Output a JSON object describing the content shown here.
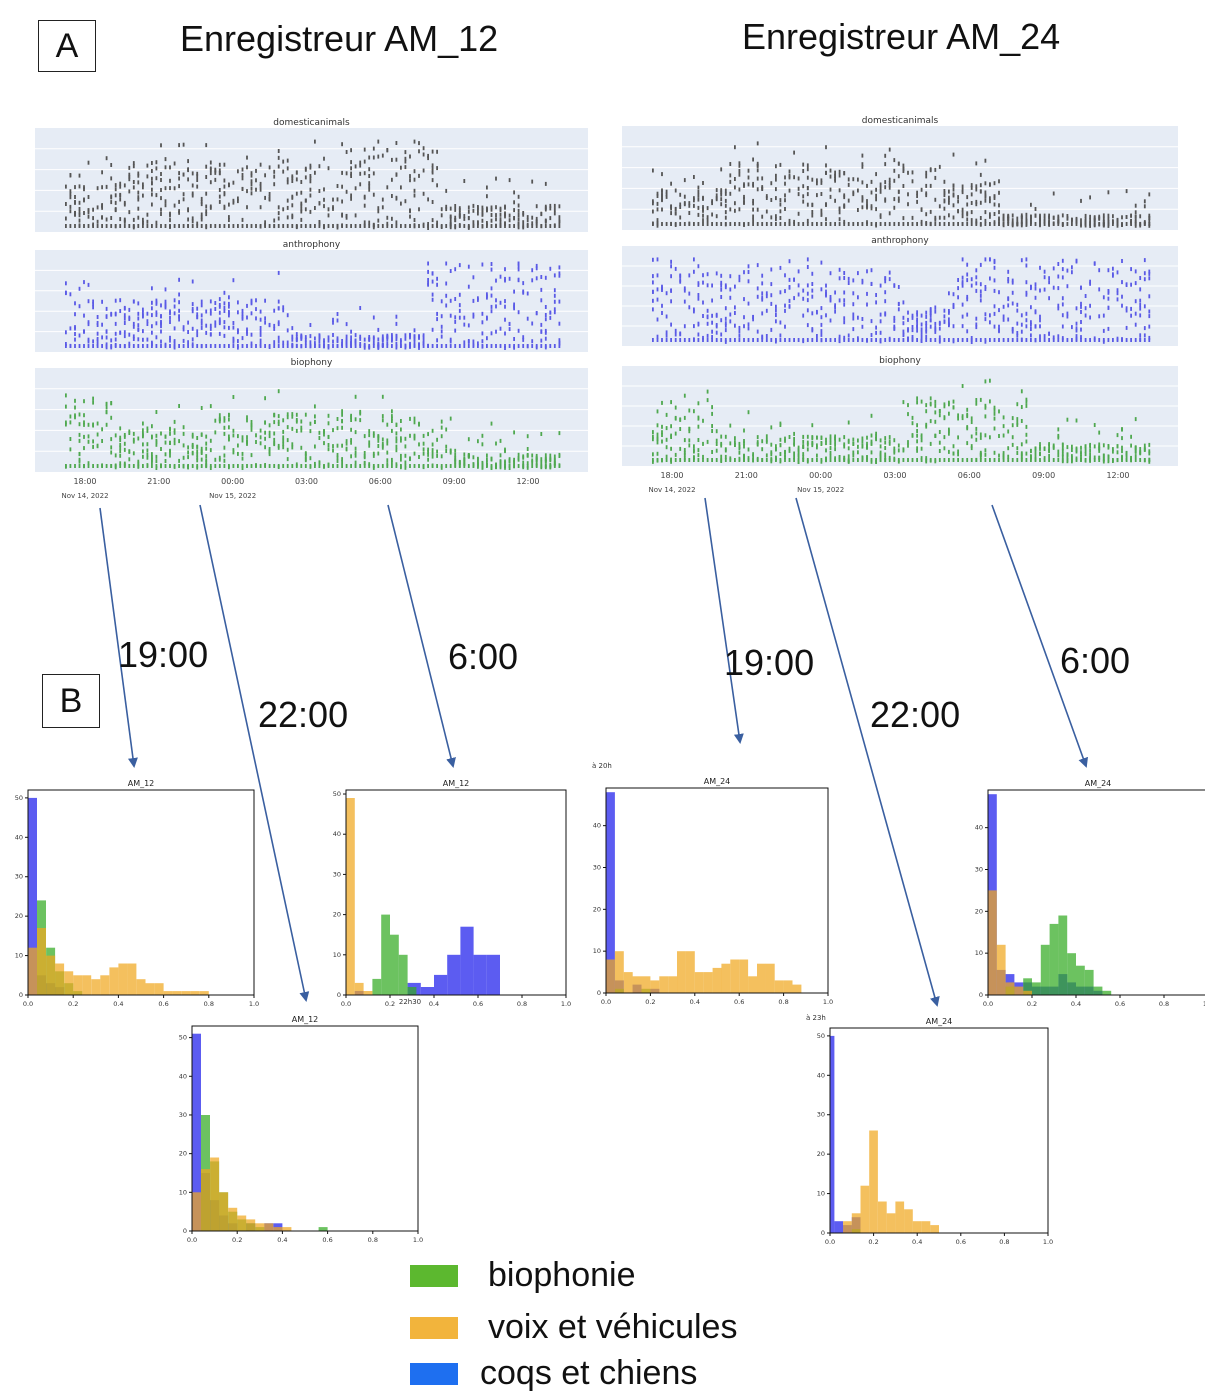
{
  "panel_labels": {
    "a": "A",
    "b": "B"
  },
  "recorders": [
    {
      "key": "am12",
      "title": "Enregistreur AM_12"
    },
    {
      "key": "am24",
      "title": "Enregistreur AM_24"
    }
  ],
  "colors": {
    "domestic": "#555555",
    "anthropo": "#5a5ae6",
    "bio": "#4fa84f",
    "hist_blue": "#3333ee",
    "hist_green": "#33aa22",
    "hist_orange": "#f0a820",
    "legend_green": "#5cb82f",
    "legend_orange": "#f2b43c",
    "legend_blue": "#1e6ff0",
    "arrow": "#3a5fa0",
    "strip_bg": "#e6ecf5"
  },
  "timeseries": {
    "strips": [
      {
        "key": "dom",
        "title": "domesticanimals",
        "color_key": "domestic"
      },
      {
        "key": "anth",
        "title": "anthrophony",
        "color_key": "anthropo"
      },
      {
        "key": "bio",
        "title": "biophony",
        "color_key": "bio"
      }
    ],
    "xticks": [
      "18:00",
      "21:00",
      "00:00",
      "03:00",
      "06:00",
      "09:00",
      "12:00"
    ],
    "date_labels": [
      "Nov 14, 2022",
      "Nov 15, 2022"
    ]
  },
  "time_labels": {
    "am12": [
      "19:00",
      "22:00",
      "6:00"
    ],
    "am24": [
      "19:00",
      "22:00",
      "6:00"
    ]
  },
  "chart_data": [
    {
      "type": "bar",
      "title": "AM_12",
      "time": "19:00",
      "x_ticks": [
        "0.0",
        "0.2",
        "0.4",
        "0.6",
        "0.8",
        "1.0"
      ],
      "y_ticks": [
        "0",
        "10",
        "20",
        "30",
        "40",
        "50"
      ],
      "xlim": [
        0,
        1
      ],
      "ylim": [
        0,
        52
      ],
      "series": [
        {
          "color_key": "hist_blue",
          "bins": [
            [
              0.0,
              0.04,
              50
            ],
            [
              0.04,
              0.08,
              5
            ],
            [
              0.08,
              0.12,
              3
            ],
            [
              0.12,
              0.16,
              2
            ]
          ]
        },
        {
          "color_key": "hist_green",
          "bins": [
            [
              0.04,
              0.08,
              24
            ],
            [
              0.08,
              0.12,
              12
            ],
            [
              0.12,
              0.16,
              6
            ],
            [
              0.16,
              0.2,
              3
            ],
            [
              0.2,
              0.24,
              1
            ]
          ]
        },
        {
          "color_key": "hist_orange",
          "bins": [
            [
              0.0,
              0.04,
              12
            ],
            [
              0.04,
              0.08,
              17
            ],
            [
              0.08,
              0.12,
              10
            ],
            [
              0.12,
              0.16,
              8
            ],
            [
              0.16,
              0.2,
              6
            ],
            [
              0.2,
              0.24,
              5
            ],
            [
              0.24,
              0.28,
              5
            ],
            [
              0.28,
              0.32,
              4
            ],
            [
              0.32,
              0.36,
              5
            ],
            [
              0.36,
              0.4,
              7
            ],
            [
              0.4,
              0.44,
              8
            ],
            [
              0.44,
              0.48,
              8
            ],
            [
              0.48,
              0.52,
              4
            ],
            [
              0.52,
              0.56,
              3
            ],
            [
              0.56,
              0.6,
              3
            ],
            [
              0.6,
              0.64,
              1
            ],
            [
              0.64,
              0.68,
              1
            ],
            [
              0.68,
              0.72,
              1
            ],
            [
              0.72,
              0.76,
              1
            ],
            [
              0.76,
              0.8,
              1
            ]
          ]
        }
      ]
    },
    {
      "type": "bar",
      "title": "AM_12",
      "time": "22:00",
      "x_ticks": [
        "0.0",
        "0.2",
        "0.4",
        "0.6",
        "0.8",
        "1.0"
      ],
      "y_ticks": [
        "0",
        "10",
        "20",
        "30",
        "40",
        "50"
      ],
      "xlim": [
        0,
        1
      ],
      "ylim": [
        0,
        53
      ],
      "series": [
        {
          "color_key": "hist_blue",
          "bins": [
            [
              0.0,
              0.04,
              51
            ],
            [
              0.04,
              0.08,
              15
            ],
            [
              0.08,
              0.12,
              8
            ],
            [
              0.12,
              0.16,
              4
            ],
            [
              0.16,
              0.2,
              2
            ],
            [
              0.24,
              0.28,
              2
            ],
            [
              0.32,
              0.36,
              2
            ],
            [
              0.36,
              0.4,
              2
            ]
          ]
        },
        {
          "color_key": "hist_green",
          "bins": [
            [
              0.04,
              0.08,
              30
            ],
            [
              0.08,
              0.12,
              18
            ],
            [
              0.12,
              0.16,
              10
            ],
            [
              0.16,
              0.2,
              5
            ],
            [
              0.2,
              0.24,
              3
            ],
            [
              0.24,
              0.28,
              2
            ],
            [
              0.28,
              0.32,
              1
            ],
            [
              0.56,
              0.6,
              1
            ]
          ]
        },
        {
          "color_key": "hist_orange",
          "bins": [
            [
              0.0,
              0.04,
              10
            ],
            [
              0.04,
              0.08,
              16
            ],
            [
              0.08,
              0.12,
              19
            ],
            [
              0.12,
              0.16,
              10
            ],
            [
              0.16,
              0.2,
              6
            ],
            [
              0.2,
              0.24,
              4
            ],
            [
              0.24,
              0.28,
              3
            ],
            [
              0.28,
              0.32,
              2
            ],
            [
              0.32,
              0.36,
              2
            ],
            [
              0.36,
              0.4,
              1
            ],
            [
              0.4,
              0.44,
              1
            ]
          ]
        }
      ]
    },
    {
      "type": "bar",
      "title": "AM_12",
      "time": "6:00",
      "x_ticks": [
        "0.0",
        "0.2",
        "0.4",
        "0.6",
        "0.8",
        "1.0"
      ],
      "y_ticks": [
        "0",
        "10",
        "20",
        "30",
        "40",
        "50"
      ],
      "xlim": [
        0,
        1
      ],
      "ylim": [
        0,
        51
      ],
      "annotation": "22h30",
      "series": [
        {
          "color_key": "hist_blue",
          "bins": [
            [
              0.04,
              0.08,
              1
            ],
            [
              0.28,
              0.34,
              3
            ],
            [
              0.34,
              0.4,
              2
            ],
            [
              0.4,
              0.46,
              5
            ],
            [
              0.46,
              0.52,
              10
            ],
            [
              0.52,
              0.58,
              17
            ],
            [
              0.58,
              0.64,
              10
            ],
            [
              0.64,
              0.7,
              10
            ]
          ]
        },
        {
          "color_key": "hist_green",
          "bins": [
            [
              0.12,
              0.16,
              4
            ],
            [
              0.16,
              0.2,
              20
            ],
            [
              0.2,
              0.24,
              15
            ],
            [
              0.24,
              0.28,
              10
            ],
            [
              0.28,
              0.32,
              2
            ]
          ]
        },
        {
          "color_key": "hist_orange",
          "bins": [
            [
              0.0,
              0.04,
              49
            ],
            [
              0.04,
              0.08,
              3
            ],
            [
              0.08,
              0.12,
              1
            ]
          ]
        }
      ]
    },
    {
      "type": "bar",
      "title": "AM_24",
      "time": "19:00",
      "x_ticks": [
        "0.0",
        "0.2",
        "0.4",
        "0.6",
        "0.8",
        "1.0"
      ],
      "y_ticks": [
        "0",
        "10",
        "20",
        "30",
        "40"
      ],
      "xlim": [
        0,
        1
      ],
      "ylim": [
        0,
        49
      ],
      "annotation": "à 20h",
      "series": [
        {
          "color_key": "hist_blue",
          "bins": [
            [
              0.0,
              0.04,
              48
            ],
            [
              0.04,
              0.08,
              3
            ],
            [
              0.12,
              0.16,
              2
            ],
            [
              0.2,
              0.24,
              1
            ]
          ]
        },
        {
          "color_key": "hist_green",
          "bins": [
            [
              0.04,
              0.08,
              1
            ],
            [
              0.16,
              0.2,
              1
            ]
          ]
        },
        {
          "color_key": "hist_orange",
          "bins": [
            [
              0.0,
              0.04,
              8
            ],
            [
              0.04,
              0.08,
              10
            ],
            [
              0.08,
              0.12,
              5
            ],
            [
              0.12,
              0.16,
              4
            ],
            [
              0.16,
              0.2,
              4
            ],
            [
              0.2,
              0.24,
              3
            ],
            [
              0.24,
              0.28,
              4
            ],
            [
              0.28,
              0.32,
              4
            ],
            [
              0.32,
              0.36,
              10
            ],
            [
              0.36,
              0.4,
              10
            ],
            [
              0.4,
              0.44,
              5
            ],
            [
              0.44,
              0.48,
              5
            ],
            [
              0.48,
              0.52,
              6
            ],
            [
              0.52,
              0.56,
              7
            ],
            [
              0.56,
              0.6,
              8
            ],
            [
              0.6,
              0.64,
              8
            ],
            [
              0.64,
              0.68,
              4
            ],
            [
              0.68,
              0.72,
              7
            ],
            [
              0.72,
              0.76,
              7
            ],
            [
              0.76,
              0.8,
              3
            ],
            [
              0.8,
              0.84,
              3
            ],
            [
              0.84,
              0.88,
              2
            ]
          ]
        }
      ]
    },
    {
      "type": "bar",
      "title": "AM_24",
      "time": "22:00",
      "x_ticks": [
        "0.0",
        "0.2",
        "0.4",
        "0.6",
        "0.8",
        "1.0"
      ],
      "y_ticks": [
        "0",
        "10",
        "20",
        "30",
        "40",
        "50"
      ],
      "xlim": [
        0,
        1
      ],
      "ylim": [
        0,
        52
      ],
      "annotation": "à 23h",
      "series": [
        {
          "color_key": "hist_blue",
          "bins": [
            [
              0.0,
              0.02,
              50
            ],
            [
              0.02,
              0.06,
              3
            ],
            [
              0.06,
              0.1,
              2
            ],
            [
              0.1,
              0.14,
              4
            ]
          ]
        },
        {
          "color_key": "hist_green",
          "bins": [
            [
              0.1,
              0.14,
              1
            ]
          ]
        },
        {
          "color_key": "hist_orange",
          "bins": [
            [
              0.06,
              0.1,
              3
            ],
            [
              0.1,
              0.14,
              5
            ],
            [
              0.14,
              0.18,
              12
            ],
            [
              0.18,
              0.22,
              26
            ],
            [
              0.22,
              0.26,
              8
            ],
            [
              0.26,
              0.3,
              5
            ],
            [
              0.3,
              0.34,
              8
            ],
            [
              0.34,
              0.38,
              6
            ],
            [
              0.38,
              0.42,
              3
            ],
            [
              0.42,
              0.46,
              3
            ],
            [
              0.46,
              0.5,
              2
            ]
          ]
        }
      ]
    },
    {
      "type": "bar",
      "title": "AM_24",
      "time": "6:00",
      "x_ticks": [
        "0.0",
        "0.2",
        "0.4",
        "0.6",
        "0.8",
        "1.0"
      ],
      "y_ticks": [
        "0",
        "10",
        "20",
        "30",
        "40"
      ],
      "xlim": [
        0,
        1
      ],
      "ylim": [
        0,
        49
      ],
      "series": [
        {
          "color_key": "hist_blue",
          "bins": [
            [
              0.0,
              0.04,
              48
            ],
            [
              0.04,
              0.08,
              6
            ],
            [
              0.08,
              0.12,
              5
            ],
            [
              0.12,
              0.16,
              3
            ],
            [
              0.16,
              0.2,
              3
            ],
            [
              0.2,
              0.24,
              2
            ],
            [
              0.24,
              0.28,
              2
            ],
            [
              0.28,
              0.32,
              2
            ],
            [
              0.32,
              0.36,
              5
            ],
            [
              0.36,
              0.4,
              3
            ],
            [
              0.4,
              0.44,
              2
            ],
            [
              0.44,
              0.48,
              2
            ],
            [
              0.48,
              0.52,
              1
            ]
          ]
        },
        {
          "color_key": "hist_green",
          "bins": [
            [
              0.08,
              0.12,
              2
            ],
            [
              0.16,
              0.2,
              4
            ],
            [
              0.2,
              0.24,
              3
            ],
            [
              0.24,
              0.28,
              12
            ],
            [
              0.28,
              0.32,
              17
            ],
            [
              0.32,
              0.36,
              19
            ],
            [
              0.36,
              0.4,
              10
            ],
            [
              0.4,
              0.44,
              7
            ],
            [
              0.44,
              0.48,
              6
            ],
            [
              0.48,
              0.52,
              2
            ],
            [
              0.52,
              0.56,
              1
            ]
          ]
        },
        {
          "color_key": "hist_orange",
          "bins": [
            [
              0.0,
              0.04,
              25
            ],
            [
              0.04,
              0.08,
              12
            ],
            [
              0.08,
              0.12,
              3
            ],
            [
              0.12,
              0.16,
              2
            ],
            [
              0.16,
              0.2,
              1
            ]
          ]
        }
      ]
    }
  ],
  "legend": [
    {
      "label": "biophonie",
      "color_key": "legend_green"
    },
    {
      "label": "voix et véhicules",
      "color_key": "legend_orange"
    },
    {
      "label": "coqs et chiens",
      "color_key": "legend_blue"
    }
  ]
}
